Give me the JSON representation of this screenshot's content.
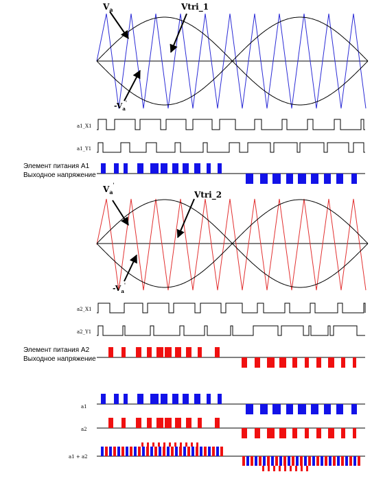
{
  "colors": {
    "carrier1": "#2b2bd6",
    "carrier2": "#e23030",
    "signal": "#000000",
    "cell1_bar": "#1212e8",
    "cell2_bar": "#f01010"
  },
  "labels": {
    "va": "V",
    "va_sub": "a",
    "neg_va": "-V",
    "neg_va_sub": "a",
    "va2": "V",
    "va2_sub": "a",
    "neg_va2": "-V",
    "neg_va2_sub": "a",
    "prime": "'",
    "vtri1": "Vtri_1",
    "vtri2": "Vtri_2",
    "a1_x1": "a1_X1",
    "a1_y1": "a1_Y1",
    "a2_x1": "a2_X1",
    "a2_y1": "a2_Y1",
    "cell_a1_line1": "Элемент питания A1",
    "cell_a1_line2": "Выходное напряжение",
    "cell_a2_line1": "Элемент питания A2",
    "cell_a2_line2": "Выходное напряжение",
    "sum_a1": "a1",
    "sum_a2": "a2",
    "sum_a1a2": "a1 + a2"
  }
}
